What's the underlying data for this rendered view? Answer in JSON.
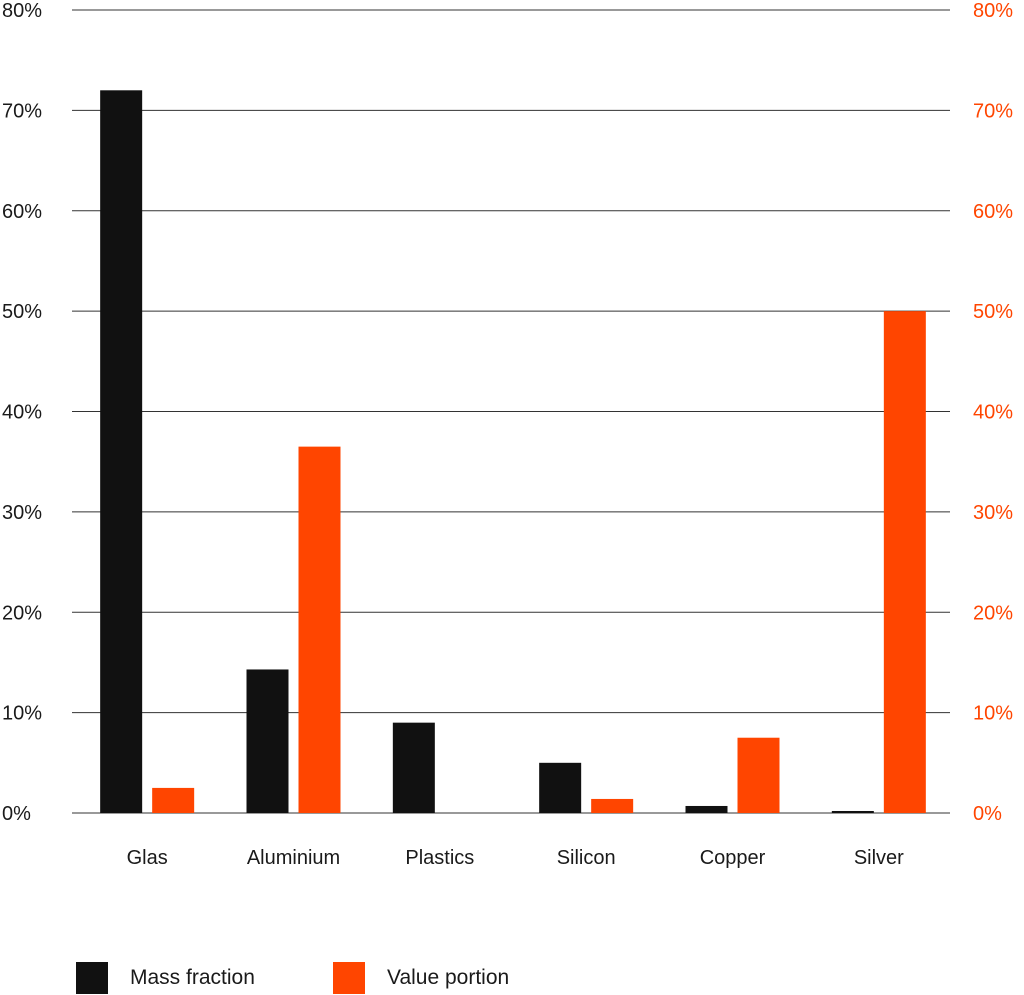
{
  "chart_data": {
    "type": "bar",
    "categories": [
      "Glas",
      "Aluminium",
      "Plastics",
      "Silicon",
      "Copper",
      "Silver"
    ],
    "series": [
      {
        "name": "Mass fraction",
        "values": [
          72,
          14.3,
          9,
          5,
          0.7,
          0.2
        ],
        "axis": "left"
      },
      {
        "name": "Value portion",
        "values": [
          2.5,
          36.5,
          0,
          1.4,
          7.5,
          50
        ],
        "axis": "right"
      }
    ],
    "y_ticks": [
      "0%",
      "10%",
      "20%",
      "30%",
      "40%",
      "50%",
      "60%",
      "70%",
      "80%"
    ],
    "ylim": [
      0,
      80
    ],
    "y2lim": [
      0,
      80
    ],
    "grid": true,
    "legend_position": "bottom-left",
    "colors": {
      "mass": "#111111",
      "value": "#ff4500",
      "right_axis_text": "#ff4500",
      "grid": "#333333"
    }
  },
  "legend": {
    "mass_label": "Mass fraction",
    "value_label": "Value portion"
  }
}
